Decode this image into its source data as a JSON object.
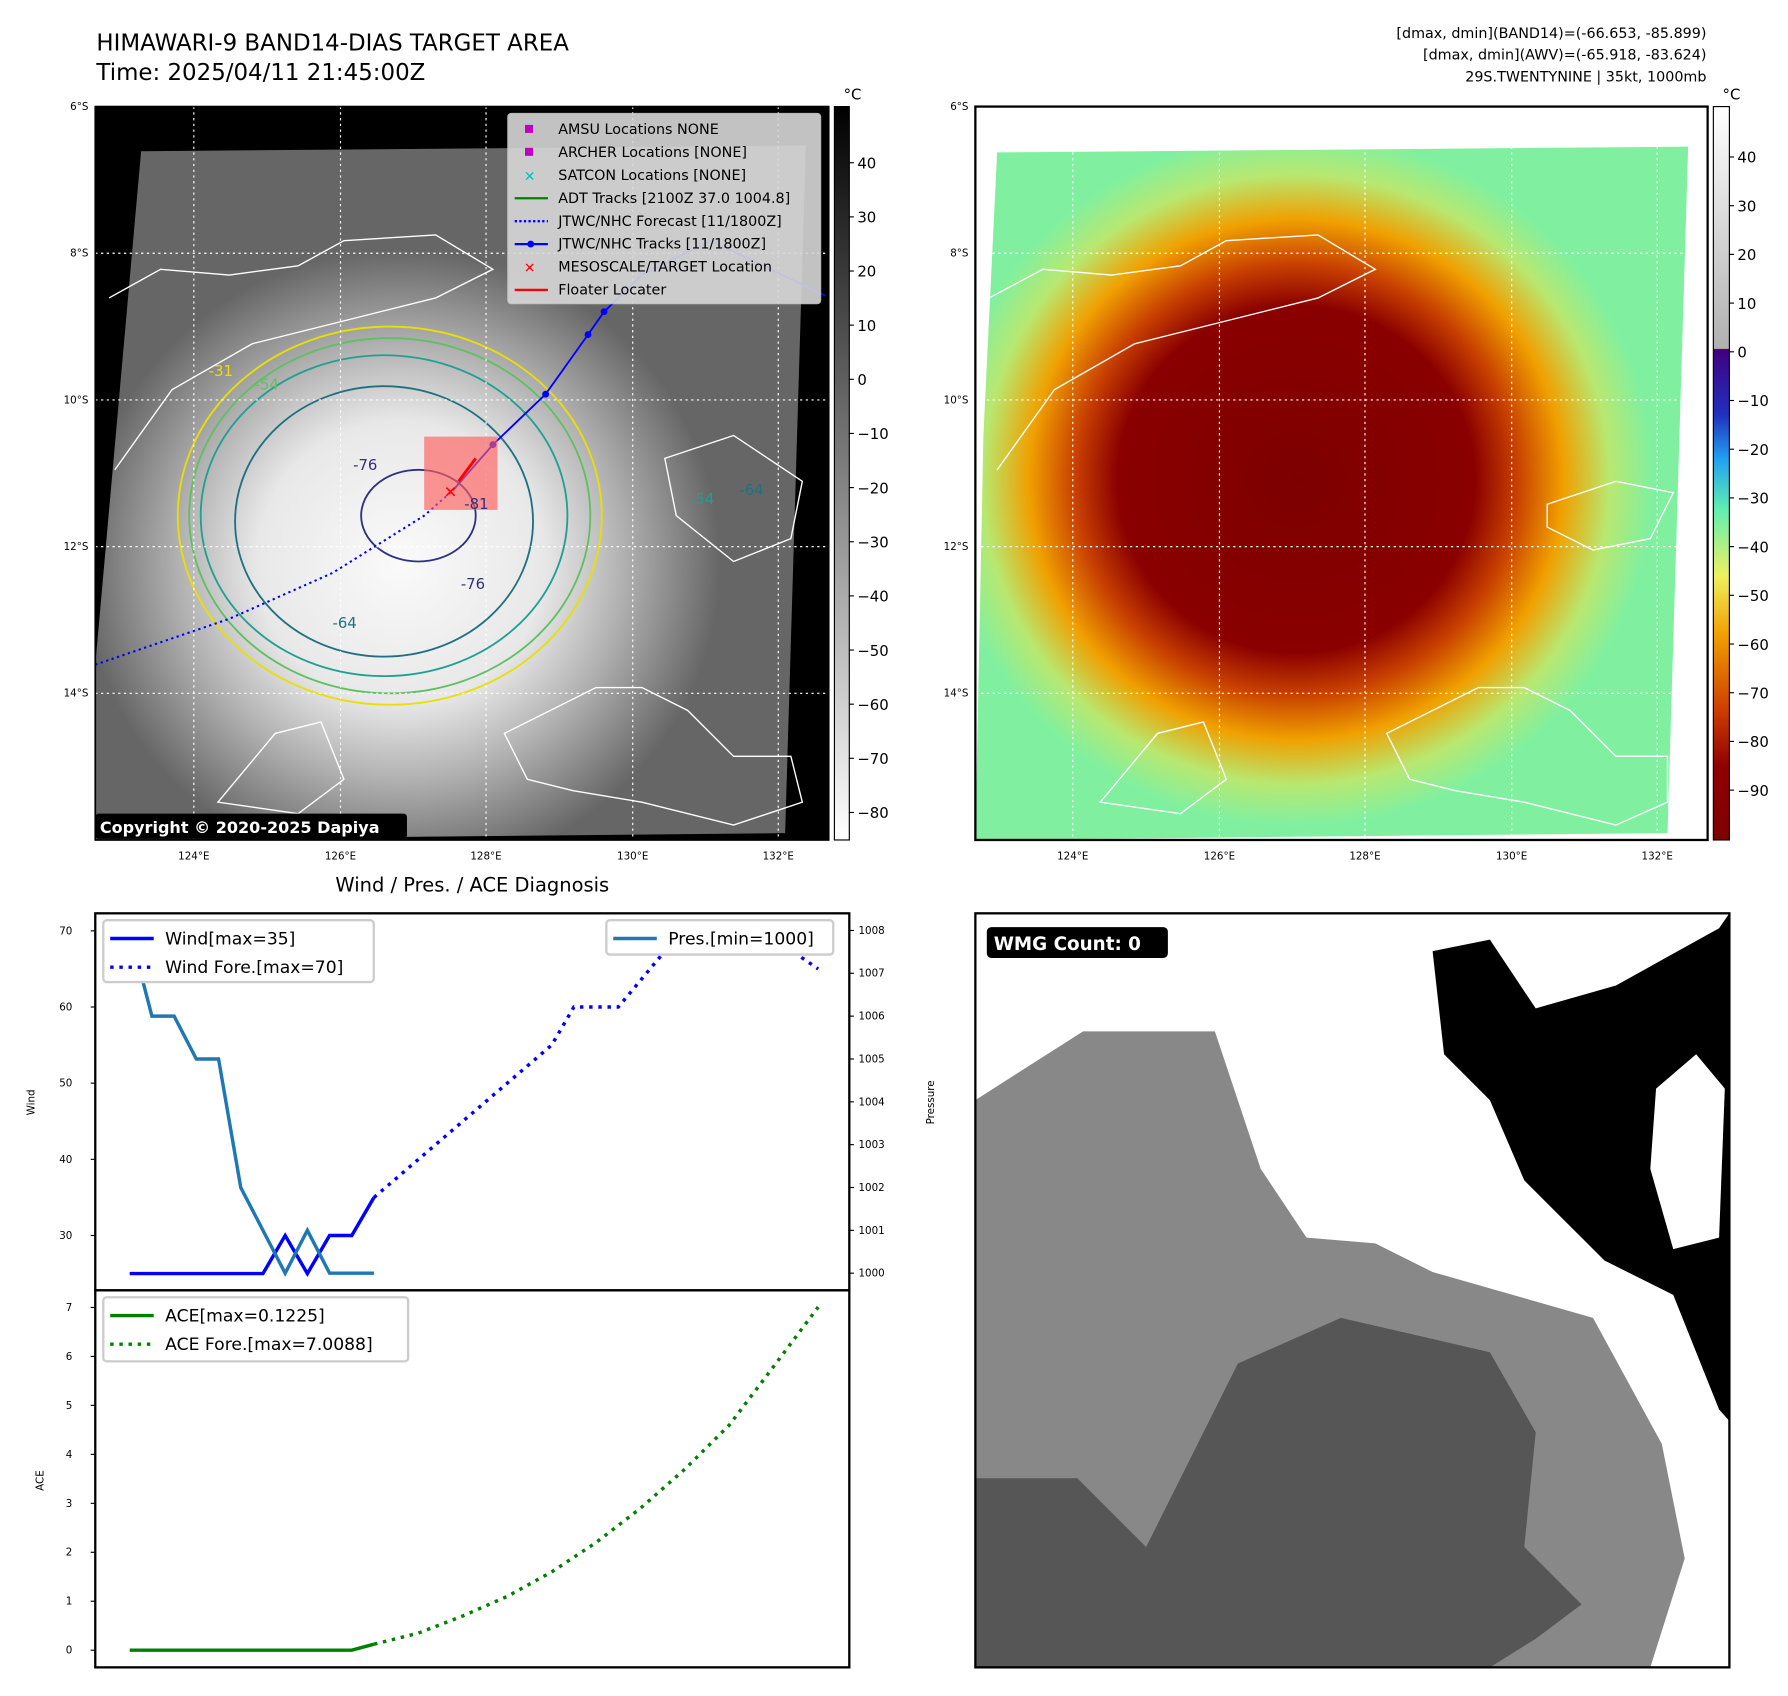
{
  "header": {
    "title": "HIMAWARI-9 BAND14-DIAS TARGET AREA",
    "time": "Time: 2025/04/11 21:45:00Z",
    "stats_band14": "[dmax, dmin](BAND14)=(-66.653, -85.899)",
    "stats_awv": "[dmax, dmin](AWV)=(-65.918, -83.624)",
    "storm": "29S.TWENTYNINE | 35kt, 1000mb"
  },
  "map": {
    "lat_labels": [
      "6°S",
      "8°S",
      "10°S",
      "12°S",
      "14°S"
    ],
    "lon_labels": [
      "124°E",
      "126°E",
      "128°E",
      "130°E",
      "132°E"
    ],
    "copyright": "Copyright © 2020-2025 Dapiya",
    "contour_labels": [
      "-31",
      "-54",
      "-76",
      "-64",
      "-76",
      "-64",
      "-54",
      "-81"
    ],
    "legend": [
      {
        "label": "AMSU Locations NONE",
        "color": "#c000c0",
        "marker": "square"
      },
      {
        "label": "ARCHER Locations [NONE]",
        "color": "#c000c0",
        "marker": "square"
      },
      {
        "label": "SATCON Locations [NONE]",
        "color": "#00c0c0",
        "marker": "x"
      },
      {
        "label": "ADT Tracks [2100Z 37.0 1004.8]",
        "color": "#008000",
        "marker": "line"
      },
      {
        "label": "JTWC/NHC Forecast [11/1800Z]",
        "color": "#0000ff",
        "marker": "dotted"
      },
      {
        "label": "JTWC/NHC Tracks [11/1800Z]",
        "color": "#0000ff",
        "marker": "line-dot"
      },
      {
        "label": "MESOSCALE/TARGET Location",
        "color": "#ff0000",
        "marker": "x"
      },
      {
        "label": "Floater Locater",
        "color": "#ff0000",
        "marker": "line"
      }
    ],
    "colorbar_unit": "°C",
    "colorbar1_ticks": [
      "40",
      "30",
      "20",
      "10",
      "0",
      "−10",
      "−20",
      "−30",
      "−40",
      "−50",
      "−60",
      "−70",
      "−80"
    ],
    "colorbar2_ticks": [
      "40",
      "30",
      "20",
      "10",
      "0",
      "−10",
      "−20",
      "−30",
      "−40",
      "−50",
      "−60",
      "−70",
      "−80",
      "−90"
    ]
  },
  "wmg": {
    "label": "WMG Count: 0"
  },
  "chart_data": [
    {
      "type": "line",
      "title": "Wind / Pres. / ACE Diagnosis",
      "ylabel": "Wind",
      "ylabel_right": "Pressure",
      "ylim": [
        22.8,
        72.3
      ],
      "ylim_right": [
        999.6,
        1008.4
      ],
      "xlim": [
        -1.55,
        32.4
      ],
      "yticks": [
        "70",
        "60",
        "50",
        "40",
        "30"
      ],
      "yticks_right": [
        "1008",
        "1007",
        "1006",
        "1005",
        "1004",
        "1003",
        "1002",
        "1001",
        "1000"
      ],
      "series": [
        {
          "name": "Wind[max=35]",
          "color": "#0000ff",
          "style": "solid",
          "x": [
            0,
            1,
            2,
            3,
            4,
            5,
            6,
            7,
            8,
            9,
            10,
            11
          ],
          "values": [
            25,
            25,
            25,
            25,
            25,
            25,
            25,
            30,
            25,
            30,
            30,
            35
          ]
        },
        {
          "name": "Wind Fore.[max=70]",
          "color": "#0000ff",
          "style": "dotted",
          "x": [
            11,
            19,
            20,
            22,
            24,
            30,
            31
          ],
          "values": [
            35,
            55,
            60,
            60,
            67,
            67,
            65
          ]
        },
        {
          "name": "Pres.[min=1000]",
          "color": "#1f77b4",
          "style": "solid",
          "axis": "right",
          "x": [
            0,
            1,
            2,
            3,
            4,
            5,
            6,
            7,
            8,
            9,
            10,
            11
          ],
          "values": [
            1008,
            1006,
            1006,
            1005,
            1005,
            1002,
            1001,
            1000,
            1001,
            1000,
            1000,
            1000
          ]
        }
      ]
    },
    {
      "type": "line",
      "ylabel": "ACE",
      "ylim": [
        -0.35,
        7.35
      ],
      "xlim": [
        -1.55,
        32.4
      ],
      "yticks": [
        "7",
        "6",
        "5",
        "4",
        "3",
        "2",
        "1",
        "0"
      ],
      "series": [
        {
          "name": "ACE[max=0.1225]",
          "color": "#008000",
          "style": "solid",
          "x": [
            0,
            10,
            11
          ],
          "values": [
            0,
            0,
            0.1225
          ]
        },
        {
          "name": "ACE Fore.[max=7.0088]",
          "color": "#008000",
          "style": "dotted",
          "x": [
            11,
            13,
            15,
            17,
            19,
            21,
            23,
            25,
            27,
            29,
            31
          ],
          "values": [
            0.1225,
            0.35,
            0.7,
            1.1,
            1.6,
            2.2,
            2.9,
            3.7,
            4.6,
            5.8,
            7.0088
          ]
        }
      ]
    }
  ]
}
